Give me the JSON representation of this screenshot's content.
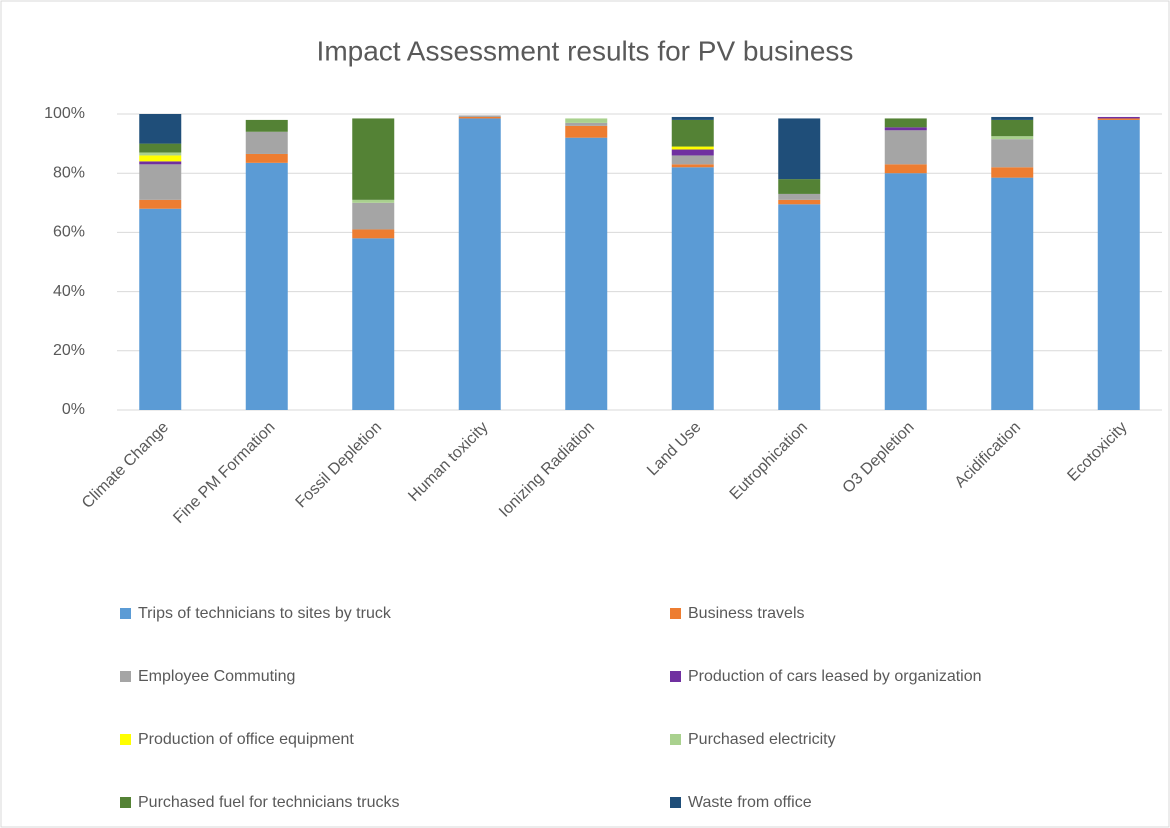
{
  "chart_data": {
    "type": "stacked_bar",
    "title": "Impact Assessment results for PV business",
    "categories": [
      "Climate Change",
      "Fine PM Formation",
      "Fossil Depletion",
      "Human toxicity",
      "Ionizing Radiation",
      "Land Use",
      "Eutrophication",
      "O3 Depletion",
      "Acidification",
      "Ecotoxicity"
    ],
    "series": [
      {
        "name": "Trips of technicians to sites by truck",
        "color": "#5b9bd5",
        "values": [
          68,
          83.5,
          58,
          98.5,
          92,
          82,
          69.5,
          80,
          78.5,
          98
        ]
      },
      {
        "name": "Business travels",
        "color": "#ed7d31",
        "values": [
          3,
          3,
          3,
          0.5,
          4,
          1,
          1.5,
          3,
          3.5,
          0.5
        ]
      },
      {
        "name": "Employee Commuting",
        "color": "#a5a5a5",
        "values": [
          12,
          7.5,
          9,
          0.5,
          1,
          3,
          2,
          11.5,
          9.5,
          0
        ]
      },
      {
        "name": "Production of cars leased by organization",
        "color": "#7030a0",
        "values": [
          1,
          0,
          0,
          0,
          0,
          2,
          0,
          1,
          0,
          0.5
        ]
      },
      {
        "name": "Production of office equipment",
        "color": "#ffff00",
        "values": [
          2,
          0,
          0,
          0,
          0,
          1,
          0,
          0,
          0,
          0
        ]
      },
      {
        "name": "Purchased electricity",
        "color": "#a9d18e",
        "values": [
          1,
          0,
          1,
          0,
          1.5,
          0,
          0,
          0,
          1,
          0
        ]
      },
      {
        "name": "Purchased fuel for technicians trucks",
        "color": "#548235",
        "values": [
          3,
          4,
          27.5,
          0,
          0,
          9,
          5,
          3,
          5.5,
          0
        ]
      },
      {
        "name": "Waste from office",
        "color": "#1f4e79",
        "values": [
          10,
          0,
          0,
          0,
          0,
          1,
          20.5,
          0,
          1,
          0
        ]
      }
    ],
    "ylim": [
      0,
      100
    ],
    "yticks": [
      {
        "value": 0,
        "label": "0%"
      },
      {
        "value": 20,
        "label": "20%"
      },
      {
        "value": 40,
        "label": "40%"
      },
      {
        "value": 60,
        "label": "60%"
      },
      {
        "value": 80,
        "label": "80%"
      },
      {
        "value": 100,
        "label": "100%"
      }
    ],
    "grid": true
  }
}
